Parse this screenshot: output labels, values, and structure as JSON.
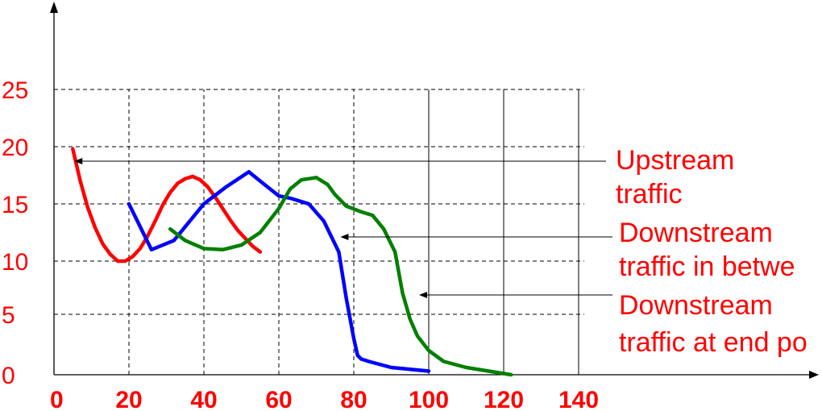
{
  "chart_data": {
    "type": "line",
    "title": "",
    "xlabel": "",
    "ylabel": "",
    "xlim": [
      0,
      140
    ],
    "ylim": [
      0,
      25
    ],
    "grid": true,
    "x_ticks": [
      0,
      20,
      40,
      60,
      80,
      100,
      120,
      140
    ],
    "y_ticks": [
      0,
      5,
      10,
      15,
      20,
      25
    ],
    "series": [
      {
        "color": "#ff0000",
        "x": [
          5,
          7,
          9,
          11,
          13,
          15,
          17,
          19,
          21,
          23,
          25,
          27,
          29,
          31,
          33,
          35,
          37,
          39,
          41,
          43,
          45,
          47,
          49,
          51,
          53,
          55
        ],
        "y": [
          19.8,
          17.0,
          14.7,
          12.9,
          11.5,
          10.6,
          10.0,
          10.0,
          10.4,
          11.1,
          12.2,
          13.5,
          14.9,
          16.0,
          16.8,
          17.2,
          17.4,
          17.1,
          16.5,
          15.6,
          14.6,
          13.6,
          12.7,
          12.0,
          11.3,
          10.8
        ]
      },
      {
        "color": "#0000ff",
        "x": [
          20,
          26,
          32,
          40,
          46,
          52,
          55,
          60,
          63,
          68,
          72,
          76,
          78,
          80,
          81,
          82,
          84,
          90,
          100
        ],
        "y": [
          15.0,
          11.0,
          11.8,
          15.0,
          16.5,
          17.8,
          17.0,
          15.7,
          15.5,
          15.0,
          13.5,
          10.8,
          6.5,
          3.0,
          1.6,
          1.3,
          1.1,
          0.6,
          0.3
        ]
      },
      {
        "color": "#008000",
        "x": [
          31,
          35,
          40,
          45,
          50,
          55,
          60,
          63,
          66,
          70,
          73,
          75,
          78,
          82,
          85,
          88,
          91,
          93,
          95,
          97,
          100,
          104,
          110,
          116,
          122
        ],
        "y": [
          12.8,
          11.8,
          11.1,
          11.0,
          11.4,
          12.5,
          14.6,
          16.3,
          17.1,
          17.3,
          16.7,
          15.8,
          14.8,
          14.3,
          14.0,
          12.8,
          10.8,
          7.0,
          4.6,
          3.2,
          2.0,
          1.1,
          0.6,
          0.3,
          0.0
        ]
      }
    ],
    "annotations": [
      {
        "lines": [
          "Upstream",
          "traffic"
        ],
        "points_to_series": 0,
        "arrow_x": 5,
        "arrow_y": 18.7
      },
      {
        "lines": [
          "Downstream",
          "traffic in betwe"
        ],
        "points_to_series": 1,
        "arrow_x": 76,
        "arrow_y": 12.1
      },
      {
        "lines": [
          "Downstream",
          "traffic at end po"
        ],
        "points_to_series": 2,
        "arrow_x": 97,
        "arrow_y": 7.0
      }
    ]
  }
}
